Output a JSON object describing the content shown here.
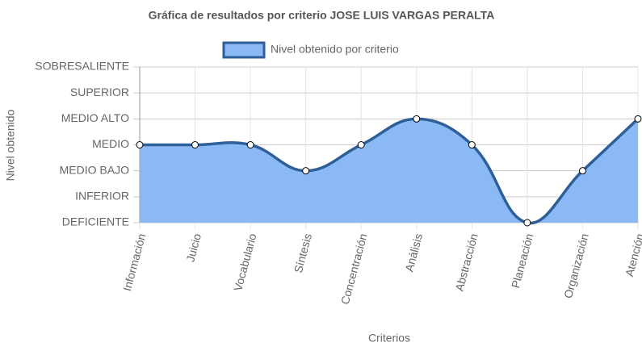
{
  "chart_data": {
    "type": "line",
    "title": "Gráfica de resultados por criterio JOSE LUIS VARGAS PERALTA",
    "x_label": "Criterios",
    "y_label": "Nivel obtenido",
    "categories": [
      "Información",
      "Juicio",
      "Vocabulario",
      "Síntesis",
      "Concentración",
      "Análisis",
      "Abstracción",
      "Planeación",
      "Organización",
      "Atención"
    ],
    "series": [
      {
        "name": "Nivel obtenido por criterio",
        "color": "#2e5f98",
        "fill": "#8ab9f5",
        "values": [
          3,
          3,
          3,
          2,
          3,
          4,
          3,
          0,
          2,
          4
        ]
      }
    ],
    "ylim": [
      0,
      6
    ],
    "yticks": [
      {
        "value": 0,
        "label": "DEFICIENTE"
      },
      {
        "value": 1,
        "label": "INFERIOR"
      },
      {
        "value": 2,
        "label": "MEDIO BAJO"
      },
      {
        "value": 3,
        "label": "MEDIO"
      },
      {
        "value": 4,
        "label": "MEDIO ALTO"
      },
      {
        "value": 5,
        "label": "SUPERIOR"
      },
      {
        "value": 6,
        "label": "SOBRESALIENTE"
      }
    ],
    "grid": true
  }
}
